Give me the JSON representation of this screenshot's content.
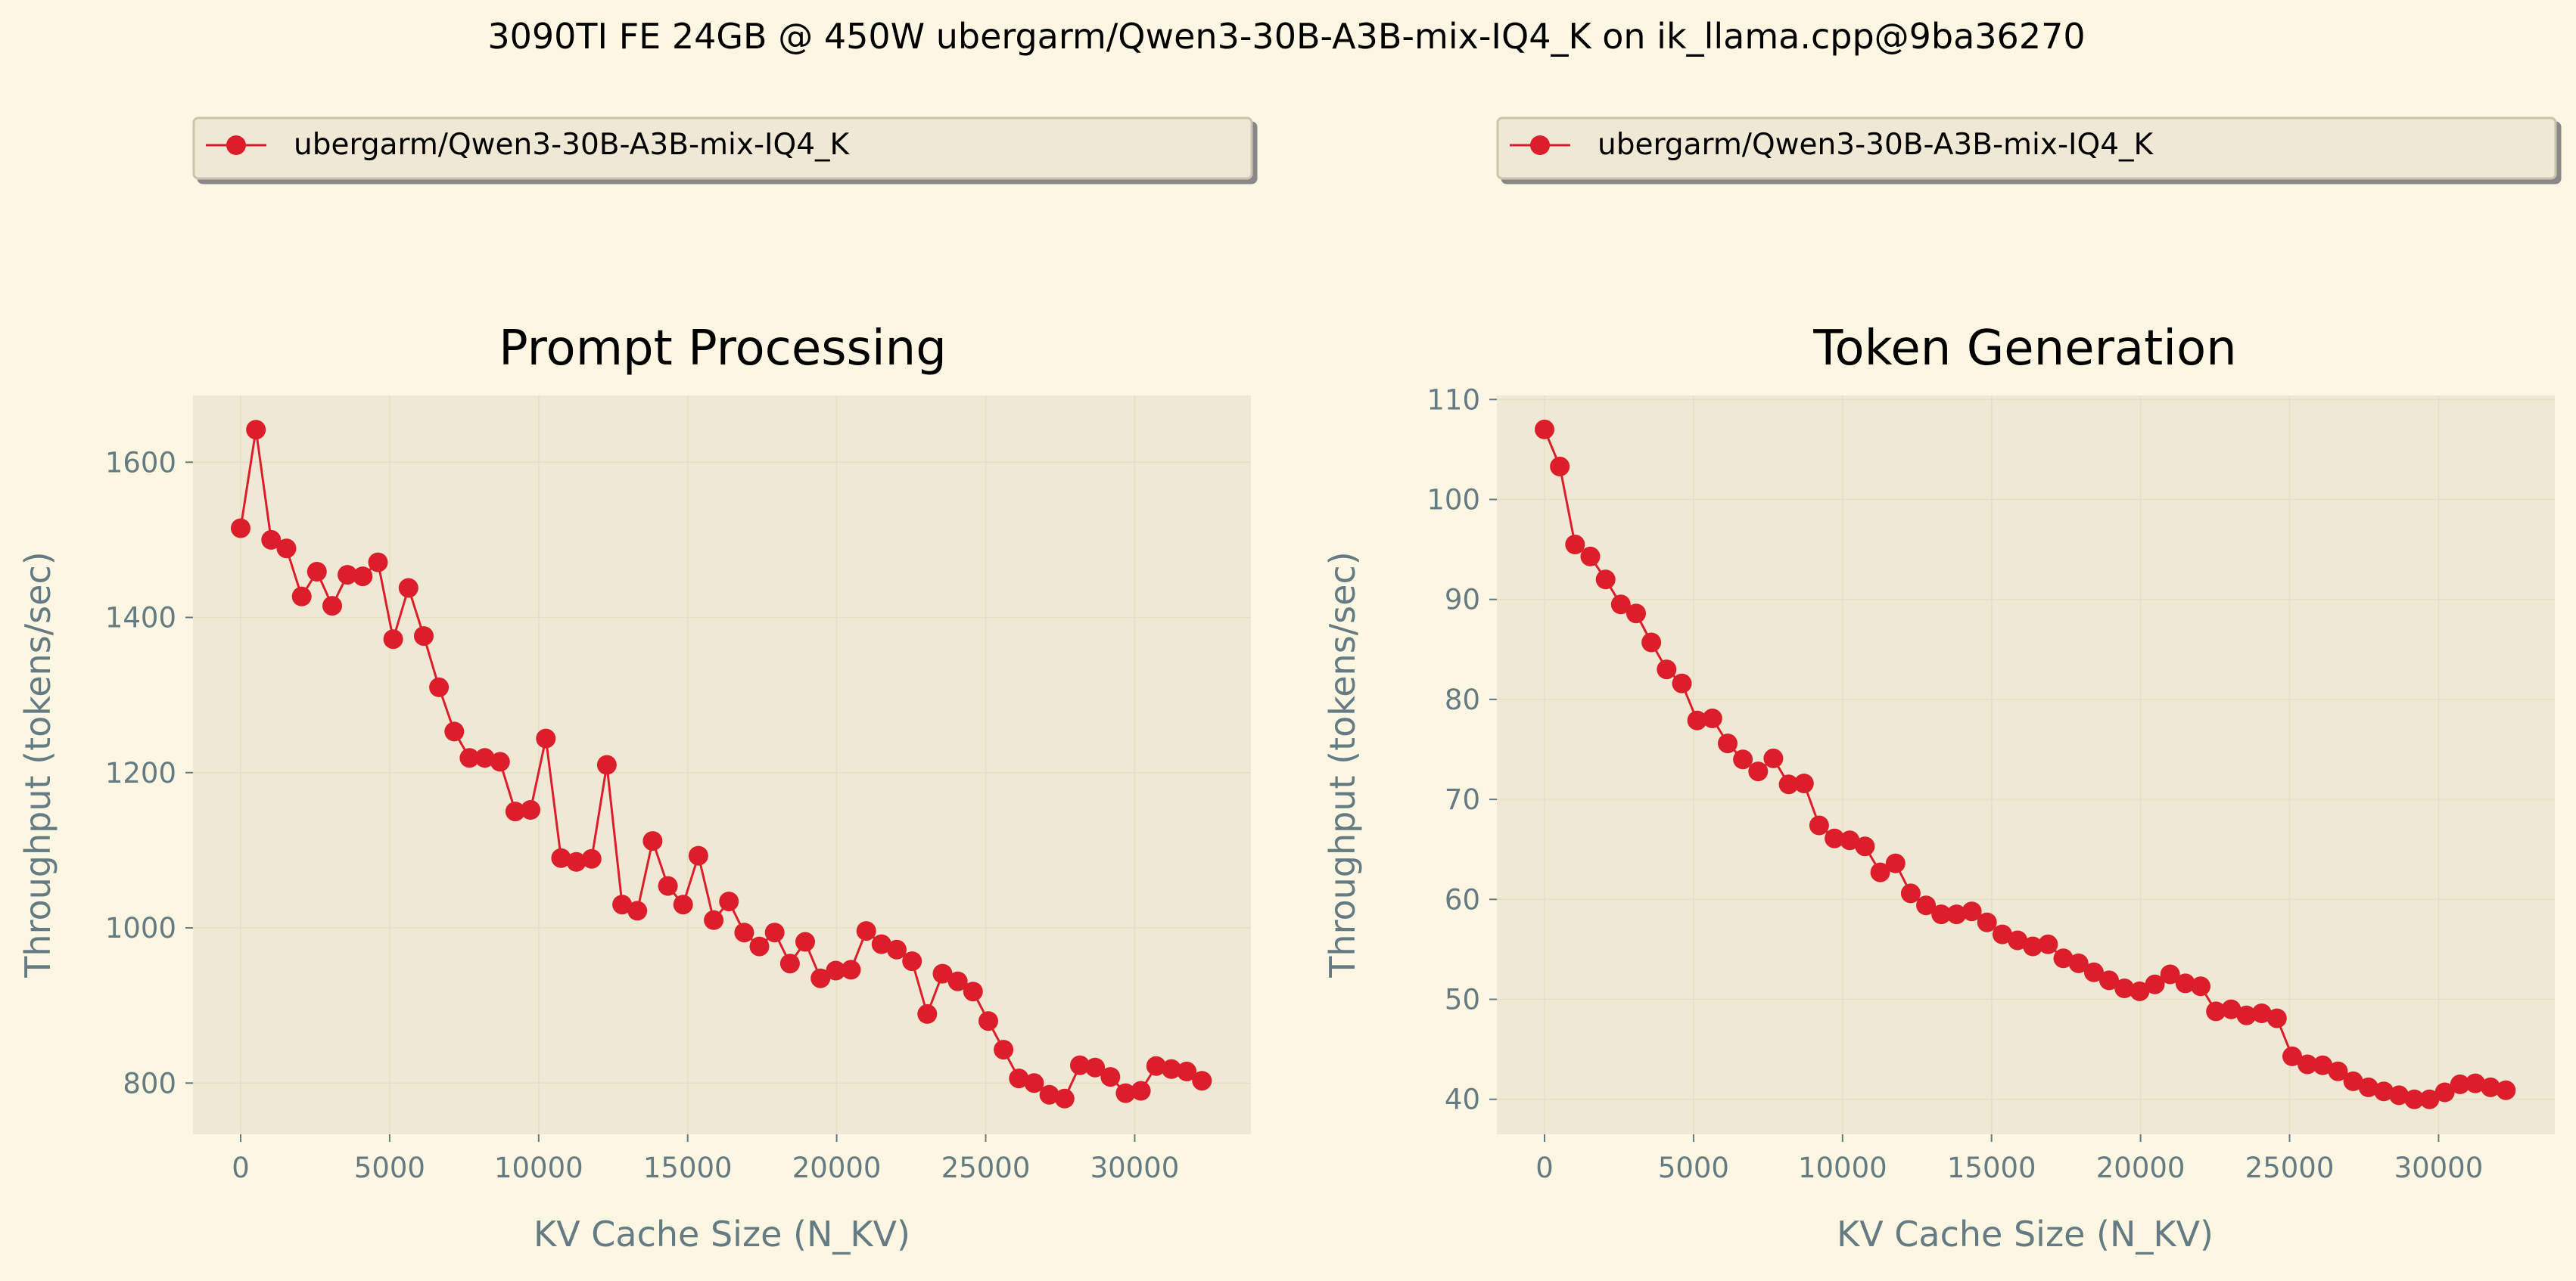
{
  "figure": {
    "suptitle": "3090TI FE 24GB @ 450W ubergarm/Qwen3-30B-A3B-mix-IQ4_K on ik_llama.cpp@9ba36270",
    "background": "#fdf6e3",
    "axes_background": "#eee8d5",
    "series_color": "#dc1e2a",
    "tick_color": "#657b83"
  },
  "chart_data": [
    {
      "type": "line",
      "title": "Prompt Processing",
      "xlabel": "KV Cache Size (N_KV)",
      "ylabel": "Throughput (tokens/sec)",
      "xlim": [
        -1600,
        33900
      ],
      "ylim": [
        734,
        1686
      ],
      "xticks": [
        0,
        5000,
        10000,
        15000,
        20000,
        25000,
        30000
      ],
      "yticks": [
        800,
        1000,
        1200,
        1400,
        1600
      ],
      "legend": {
        "label": "ubergarm/Qwen3-30B-A3B-mix-IQ4_K",
        "position": "top"
      },
      "series": [
        {
          "name": "ubergarm/Qwen3-30B-A3B-mix-IQ4_K",
          "x": [
            0,
            512,
            1024,
            1536,
            2048,
            2560,
            3072,
            3584,
            4096,
            4608,
            5120,
            5632,
            6144,
            6656,
            7168,
            7680,
            8192,
            8704,
            9216,
            9728,
            10240,
            10752,
            11264,
            11776,
            12288,
            12800,
            13312,
            13824,
            14336,
            14848,
            15360,
            15872,
            16384,
            16896,
            17408,
            17920,
            18432,
            18944,
            19456,
            19968,
            20480,
            20992,
            21504,
            22016,
            22528,
            23040,
            23552,
            24064,
            24576,
            25088,
            25600,
            26112,
            26624,
            27136,
            27648,
            28160,
            28672,
            29184,
            29696,
            30208,
            30720,
            31232,
            31744,
            32256
          ],
          "values": [
            1515,
            1642,
            1500,
            1489,
            1427,
            1459,
            1415,
            1455,
            1453,
            1471,
            1372,
            1438,
            1376,
            1310,
            1253,
            1219,
            1219,
            1214,
            1150,
            1152,
            1244,
            1090,
            1085,
            1089,
            1210,
            1030,
            1022,
            1112,
            1054,
            1030,
            1093,
            1010,
            1034,
            994,
            976,
            994,
            954,
            982,
            935,
            945,
            946,
            996,
            979,
            972,
            957,
            889,
            941,
            931,
            918,
            880,
            843,
            806,
            800,
            785,
            780,
            823,
            820,
            808,
            787,
            790,
            822,
            818,
            815,
            803
          ]
        }
      ]
    },
    {
      "type": "line",
      "title": "Token Generation",
      "xlabel": "KV Cache Size (N_KV)",
      "ylabel": "Throughput (tokens/sec)",
      "xlim": [
        -1600,
        33900
      ],
      "ylim": [
        36.5,
        110.4
      ],
      "xticks": [
        0,
        5000,
        10000,
        15000,
        20000,
        25000,
        30000
      ],
      "yticks": [
        40,
        50,
        60,
        70,
        80,
        90,
        100,
        110
      ],
      "legend": {
        "label": "ubergarm/Qwen3-30B-A3B-mix-IQ4_K",
        "position": "top"
      },
      "series": [
        {
          "name": "ubergarm/Qwen3-30B-A3B-mix-IQ4_K",
          "x": [
            0,
            512,
            1024,
            1536,
            2048,
            2560,
            3072,
            3584,
            4096,
            4608,
            5120,
            5632,
            6144,
            6656,
            7168,
            7680,
            8192,
            8704,
            9216,
            9728,
            10240,
            10752,
            11264,
            11776,
            12288,
            12800,
            13312,
            13824,
            14336,
            14848,
            15360,
            15872,
            16384,
            16896,
            17408,
            17920,
            18432,
            18944,
            19456,
            19968,
            20480,
            20992,
            21504,
            22016,
            22528,
            23040,
            23552,
            24064,
            24576,
            25088,
            25600,
            26112,
            26624,
            27136,
            27648,
            28160,
            28672,
            29184,
            29696,
            30208,
            30720,
            31232,
            31744,
            32256
          ],
          "values": [
            107.0,
            103.3,
            95.5,
            94.3,
            92.0,
            89.5,
            88.6,
            85.7,
            83.0,
            81.6,
            77.9,
            78.1,
            75.6,
            74.0,
            72.8,
            74.1,
            71.5,
            71.6,
            67.4,
            66.1,
            65.9,
            65.3,
            62.7,
            63.6,
            60.6,
            59.4,
            58.5,
            58.5,
            58.8,
            57.7,
            56.5,
            55.9,
            55.3,
            55.5,
            54.1,
            53.6,
            52.7,
            51.9,
            51.1,
            50.8,
            51.5,
            52.5,
            51.6,
            51.3,
            48.8,
            49.0,
            48.4,
            48.6,
            48.1,
            44.3,
            43.5,
            43.4,
            42.8,
            41.8,
            41.2,
            40.8,
            40.4,
            40.0,
            40.0,
            40.7,
            41.5,
            41.6,
            41.2,
            40.9
          ]
        }
      ]
    }
  ]
}
